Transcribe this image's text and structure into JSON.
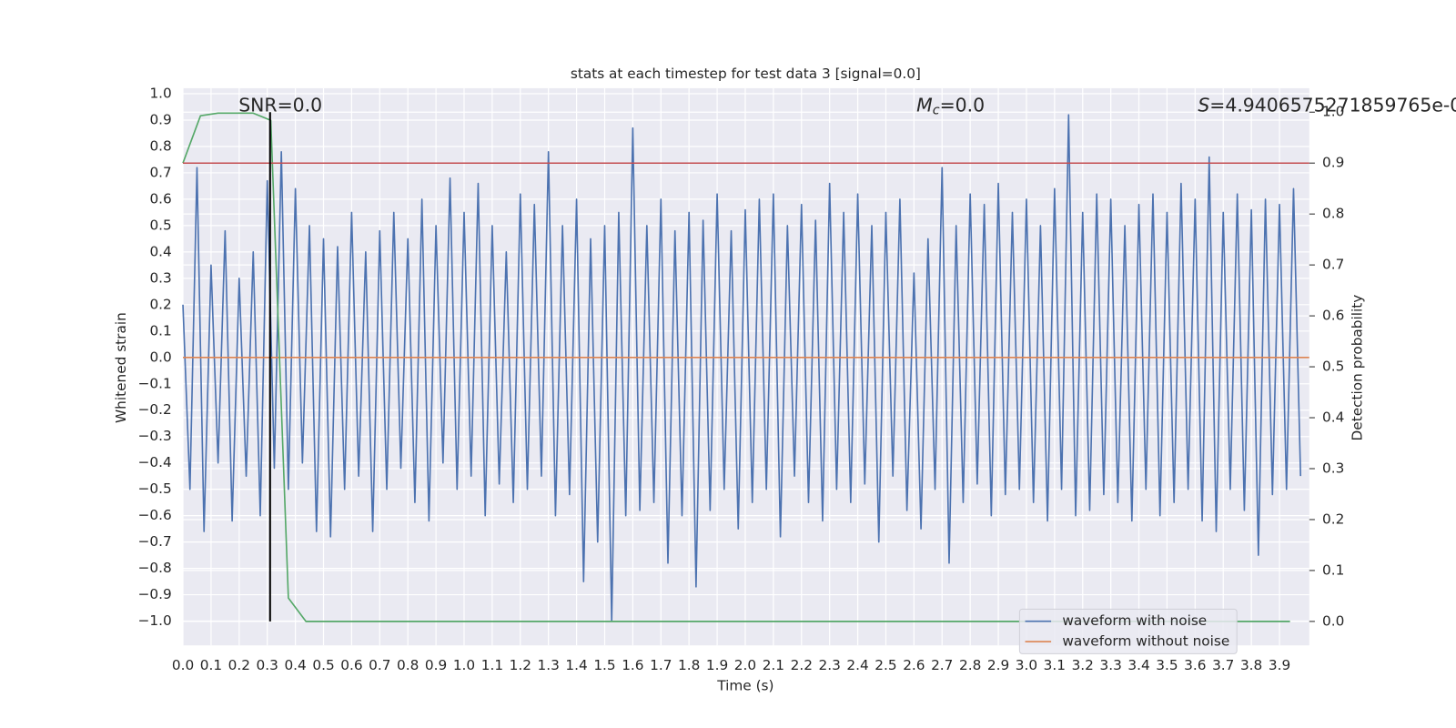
{
  "chart_data": {
    "type": "line",
    "title": "stats at each timestep for test data 3 [signal=0.0]",
    "xlabel": "Time (s)",
    "ylabel": "Whitened strain",
    "y2label": "Detection probability",
    "annotations": [
      {
        "text": "SNR=0.0"
      },
      {
        "symbol": "M",
        "subscript": "c",
        "text": "=0.0"
      },
      {
        "symbol": "S",
        "text": "=4.9406575271859765e-0"
      }
    ],
    "xlim": [
      0,
      4.006
    ],
    "ylim": [
      -1.092,
      1.021
    ],
    "y2lim": [
      -0.047,
      1.047
    ],
    "grid": true,
    "legend": "lower right",
    "xticks": [
      {
        "value": 0,
        "label": "0.0"
      },
      {
        "value": 0.1,
        "label": "0.1"
      },
      {
        "value": 0.2,
        "label": "0.2"
      },
      {
        "value": 0.3,
        "label": "0.3"
      },
      {
        "value": 0.4,
        "label": "0.4"
      },
      {
        "value": 0.5,
        "label": "0.5"
      },
      {
        "value": 0.6,
        "label": "0.6"
      },
      {
        "value": 0.7,
        "label": "0.7"
      },
      {
        "value": 0.8,
        "label": "0.8"
      },
      {
        "value": 0.9,
        "label": "0.9"
      },
      {
        "value": 1,
        "label": "1.0"
      },
      {
        "value": 1.1,
        "label": "1.1"
      },
      {
        "value": 1.2,
        "label": "1.2"
      },
      {
        "value": 1.3,
        "label": "1.3"
      },
      {
        "value": 1.4,
        "label": "1.4"
      },
      {
        "value": 1.5,
        "label": "1.5"
      },
      {
        "value": 1.6,
        "label": "1.6"
      },
      {
        "value": 1.7,
        "label": "1.7"
      },
      {
        "value": 1.8,
        "label": "1.8"
      },
      {
        "value": 1.9,
        "label": "1.9"
      },
      {
        "value": 2,
        "label": "2.0"
      },
      {
        "value": 2.1,
        "label": "2.1"
      },
      {
        "value": 2.2,
        "label": "2.2"
      },
      {
        "value": 2.3,
        "label": "2.3"
      },
      {
        "value": 2.4,
        "label": "2.4"
      },
      {
        "value": 2.5,
        "label": "2.5"
      },
      {
        "value": 2.6,
        "label": "2.6"
      },
      {
        "value": 2.7,
        "label": "2.7"
      },
      {
        "value": 2.8,
        "label": "2.8"
      },
      {
        "value": 2.9,
        "label": "2.9"
      },
      {
        "value": 3,
        "label": "3.0"
      },
      {
        "value": 3.1,
        "label": "3.1"
      },
      {
        "value": 3.2,
        "label": "3.2"
      },
      {
        "value": 3.3,
        "label": "3.3"
      },
      {
        "value": 3.4,
        "label": "3.4"
      },
      {
        "value": 3.5,
        "label": "3.5"
      },
      {
        "value": 3.6,
        "label": "3.6"
      },
      {
        "value": 3.7,
        "label": "3.7"
      },
      {
        "value": 3.8,
        "label": "3.8"
      },
      {
        "value": 3.9,
        "label": "3.9"
      }
    ],
    "yticks": [
      {
        "value": -1,
        "label": "−1.0"
      },
      {
        "value": -0.9,
        "label": "−0.9"
      },
      {
        "value": -0.8,
        "label": "−0.8"
      },
      {
        "value": -0.7,
        "label": "−0.7"
      },
      {
        "value": -0.6,
        "label": "−0.6"
      },
      {
        "value": -0.5,
        "label": "−0.5"
      },
      {
        "value": -0.4,
        "label": "−0.4"
      },
      {
        "value": -0.3,
        "label": "−0.3"
      },
      {
        "value": -0.2,
        "label": "−0.2"
      },
      {
        "value": -0.1,
        "label": "−0.1"
      },
      {
        "value": 0,
        "label": "0.0"
      },
      {
        "value": 0.1,
        "label": "0.1"
      },
      {
        "value": 0.2,
        "label": "0.2"
      },
      {
        "value": 0.3,
        "label": "0.3"
      },
      {
        "value": 0.4,
        "label": "0.4"
      },
      {
        "value": 0.5,
        "label": "0.5"
      },
      {
        "value": 0.6,
        "label": "0.6"
      },
      {
        "value": 0.7,
        "label": "0.7"
      },
      {
        "value": 0.8,
        "label": "0.8"
      },
      {
        "value": 0.9,
        "label": "0.9"
      },
      {
        "value": 1,
        "label": "1.0"
      }
    ],
    "y2ticks": [
      {
        "value": 0,
        "label": "0.0"
      },
      {
        "value": 0.1,
        "label": "0.1"
      },
      {
        "value": 0.2,
        "label": "0.2"
      },
      {
        "value": 0.3,
        "label": "0.3"
      },
      {
        "value": 0.4,
        "label": "0.4"
      },
      {
        "value": 0.5,
        "label": "0.5"
      },
      {
        "value": 0.6,
        "label": "0.6"
      },
      {
        "value": 0.7,
        "label": "0.7"
      },
      {
        "value": 0.8,
        "label": "0.8"
      },
      {
        "value": 0.9,
        "label": "0.9"
      },
      {
        "value": 1,
        "label": "1.0"
      }
    ],
    "series": [
      {
        "name": "waveform with noise",
        "color": "#4c72b0",
        "x": [
          0,
          0.025,
          0.05,
          0.075,
          0.1,
          0.125,
          0.15,
          0.175,
          0.2,
          0.225,
          0.25,
          0.275,
          0.3,
          0.325,
          0.35,
          0.375,
          0.4,
          0.425,
          0.45,
          0.475,
          0.5,
          0.525,
          0.55,
          0.575,
          0.6,
          0.625,
          0.65,
          0.675,
          0.7,
          0.725,
          0.75,
          0.775,
          0.8,
          0.825,
          0.85,
          0.875,
          0.9,
          0.925,
          0.95,
          0.975,
          1,
          1.025,
          1.05,
          1.075,
          1.1,
          1.125,
          1.15,
          1.175,
          1.2,
          1.225,
          1.25,
          1.275,
          1.3,
          1.325,
          1.35,
          1.375,
          1.4,
          1.425,
          1.45,
          1.475,
          1.5,
          1.525,
          1.55,
          1.575,
          1.6,
          1.625,
          1.65,
          1.675,
          1.7,
          1.725,
          1.75,
          1.775,
          1.8,
          1.825,
          1.85,
          1.875,
          1.9,
          1.925,
          1.95,
          1.975,
          2,
          2.025,
          2.05,
          2.075,
          2.1,
          2.125,
          2.15,
          2.175,
          2.2,
          2.225,
          2.25,
          2.275,
          2.3,
          2.325,
          2.35,
          2.375,
          2.4,
          2.425,
          2.45,
          2.475,
          2.5,
          2.525,
          2.55,
          2.575,
          2.6,
          2.625,
          2.65,
          2.675,
          2.7,
          2.725,
          2.75,
          2.775,
          2.8,
          2.825,
          2.85,
          2.875,
          2.9,
          2.925,
          2.95,
          2.975,
          3,
          3.025,
          3.05,
          3.075,
          3.1,
          3.125,
          3.15,
          3.175,
          3.2,
          3.225,
          3.25,
          3.275,
          3.3,
          3.325,
          3.35,
          3.375,
          3.4,
          3.425,
          3.45,
          3.475,
          3.5,
          3.525,
          3.55,
          3.575,
          3.6,
          3.625,
          3.65,
          3.675,
          3.7,
          3.725,
          3.75,
          3.775,
          3.8,
          3.825,
          3.85,
          3.875,
          3.9,
          3.925,
          3.95,
          3.975
        ],
        "values": [
          0.2,
          -0.5,
          0.72,
          -0.66,
          0.35,
          -0.4,
          0.48,
          -0.62,
          0.3,
          -0.45,
          0.4,
          -0.6,
          0.67,
          -0.42,
          0.78,
          -0.5,
          0.64,
          -0.4,
          0.5,
          -0.66,
          0.45,
          -0.68,
          0.42,
          -0.5,
          0.55,
          -0.45,
          0.4,
          -0.66,
          0.48,
          -0.5,
          0.55,
          -0.42,
          0.45,
          -0.55,
          0.6,
          -0.62,
          0.5,
          -0.4,
          0.68,
          -0.5,
          0.55,
          -0.45,
          0.66,
          -0.6,
          0.5,
          -0.48,
          0.4,
          -0.55,
          0.62,
          -0.5,
          0.58,
          -0.45,
          0.78,
          -0.6,
          0.5,
          -0.52,
          0.6,
          -0.85,
          0.45,
          -0.7,
          0.5,
          -1.0,
          0.55,
          -0.6,
          0.87,
          -0.58,
          0.5,
          -0.55,
          0.6,
          -0.78,
          0.48,
          -0.6,
          0.55,
          -0.87,
          0.52,
          -0.58,
          0.62,
          -0.5,
          0.48,
          -0.65,
          0.56,
          -0.55,
          0.6,
          -0.5,
          0.62,
          -0.68,
          0.5,
          -0.45,
          0.58,
          -0.55,
          0.52,
          -0.62,
          0.66,
          -0.5,
          0.55,
          -0.55,
          0.62,
          -0.48,
          0.5,
          -0.7,
          0.55,
          -0.45,
          0.6,
          -0.58,
          0.32,
          -0.65,
          0.45,
          -0.5,
          0.72,
          -0.78,
          0.5,
          -0.55,
          0.62,
          -0.48,
          0.58,
          -0.6,
          0.66,
          -0.52,
          0.55,
          -0.5,
          0.6,
          -0.55,
          0.5,
          -0.62,
          0.64,
          -0.5,
          0.92,
          -0.6,
          0.55,
          -0.58,
          0.62,
          -0.52,
          0.6,
          -0.55,
          0.5,
          -0.62,
          0.58,
          -0.5,
          0.62,
          -0.6,
          0.55,
          -0.55,
          0.66,
          -0.5,
          0.6,
          -0.62,
          0.76,
          -0.66,
          0.55,
          -0.5,
          0.62,
          -0.58,
          0.56,
          -0.75,
          0.6,
          -0.52,
          0.58,
          -0.5,
          0.64,
          -0.45
        ]
      },
      {
        "name": "waveform without noise",
        "color": "#dd8452",
        "x": [
          0,
          4.006
        ],
        "values": [
          0,
          0
        ]
      },
      {
        "color": "#55a868",
        "axis": "y2",
        "x": [
          0,
          0.0625,
          0.125,
          0.1875,
          0.25,
          0.3125,
          0.375,
          0.4375,
          0.5,
          0.5625,
          0.625,
          0.6875,
          0.75,
          0.8125,
          0.875,
          0.9375,
          1,
          1.0625,
          1.125,
          1.1875,
          1.25,
          1.3125,
          1.375,
          1.4375,
          1.5,
          1.5625,
          1.625,
          1.6875,
          1.75,
          1.8125,
          1.875,
          1.9375,
          2,
          2.0625,
          2.125,
          2.1875,
          2.25,
          2.3125,
          2.375,
          2.4375,
          2.5,
          2.5625,
          2.625,
          2.6875,
          2.75,
          2.8125,
          2.875,
          2.9375,
          3,
          3.0625,
          3.125,
          3.1875,
          3.25,
          3.3125,
          3.375,
          3.4375,
          3.5,
          3.5625,
          3.625,
          3.6875,
          3.75,
          3.8125,
          3.875,
          3.9375
        ],
        "values": [
          0.9,
          0.993,
          0.998,
          0.998,
          0.998,
          0.984,
          0.046,
          0,
          0,
          0,
          0,
          0,
          0,
          0,
          0,
          0,
          0,
          0,
          0,
          0,
          0,
          0,
          0,
          0,
          0,
          0,
          0,
          0,
          0,
          0,
          0,
          0,
          0,
          0,
          0,
          0,
          0,
          0,
          0,
          0,
          0,
          0,
          0,
          0,
          0,
          0,
          0,
          0,
          0,
          0,
          0,
          0,
          0,
          0,
          0,
          0,
          0,
          0,
          0,
          0,
          0,
          0,
          0,
          0
        ]
      }
    ],
    "hlines": [
      {
        "y": 0.9,
        "axis": "y2",
        "color": "#c44e52"
      }
    ],
    "vlines": [
      {
        "x": 0.31,
        "axis": "y2",
        "ymin": 0,
        "ymax": 1.0,
        "color": "#000000"
      }
    ]
  }
}
